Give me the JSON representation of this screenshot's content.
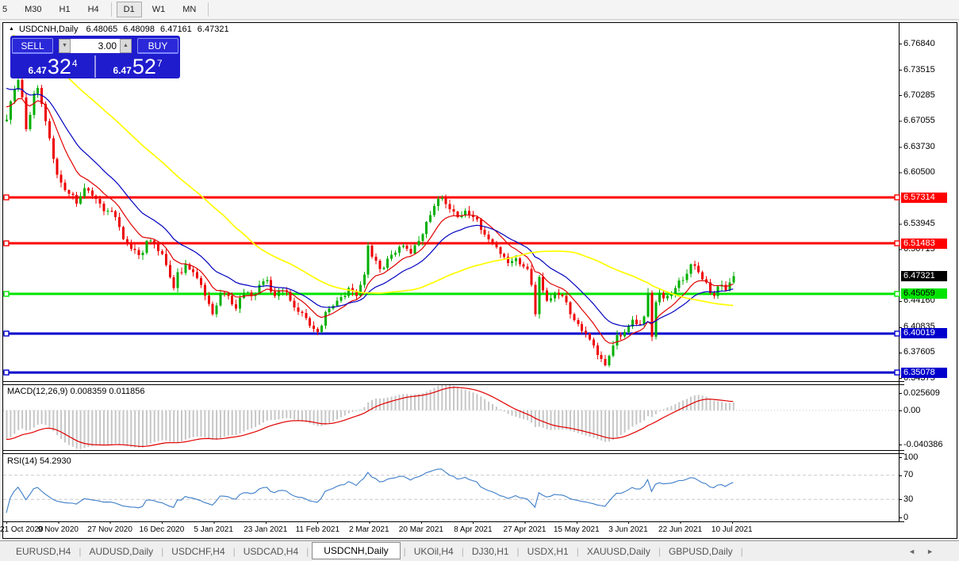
{
  "toolbar": {
    "timeframes": [
      "5",
      "M30",
      "H1",
      "H4",
      "D1",
      "W1",
      "MN"
    ],
    "active": "D1"
  },
  "chart_header": {
    "collapse_icon": "▲",
    "symbol": "USDCNH,Daily",
    "ohlc": [
      "6.48065",
      "6.48098",
      "6.47161",
      "6.47321"
    ]
  },
  "trade_panel": {
    "sell_label": "SELL",
    "buy_label": "BUY",
    "volume": "3.00",
    "spin_down": "▼",
    "spin_up": "▲",
    "sell_price": {
      "prefix": "6.47",
      "big": "32",
      "sup": "4"
    },
    "buy_price": {
      "prefix": "6.47",
      "big": "52",
      "sup": "7"
    }
  },
  "price_axis": {
    "ticks": [
      "6.76840",
      "6.73515",
      "6.70285",
      "6.67055",
      "6.63730",
      "6.60500",
      "6.53945",
      "6.50715",
      "6.44160",
      "6.40835",
      "6.37605",
      "6.34375"
    ]
  },
  "levels": [
    {
      "price": 6.57314,
      "label": "6.57314",
      "color": "#ff0000",
      "text_color": "#ffffff"
    },
    {
      "price": 6.51483,
      "label": "6.51483",
      "color": "#ff0000",
      "text_color": "#ffffff"
    },
    {
      "price": 6.45059,
      "label": "6.45059",
      "color": "#00e400",
      "text_color": "#000000"
    },
    {
      "price": 6.40019,
      "label": "6.40019",
      "color": "#0000cc",
      "text_color": "#ffffff"
    },
    {
      "price": 6.35078,
      "label": "6.35078",
      "color": "#0000cc",
      "text_color": "#ffffff"
    }
  ],
  "current_price": {
    "value": 6.47321,
    "label": "6.47321",
    "bg": "#000000",
    "text_color": "#ffffff"
  },
  "macd": {
    "label": "MACD(12,26,9) 0.008359 0.011856",
    "axis_labels": [
      "0.025609",
      "0.00",
      "-0.040386"
    ],
    "max": 0.025609,
    "min": -0.040386,
    "fast": 12,
    "slow": 26,
    "signal": 9,
    "histogram_color": "#c6c6c6",
    "signal_color": "#e00000"
  },
  "rsi": {
    "label": "RSI(14) 54.2930",
    "axis_labels": [
      "100",
      "70",
      "30",
      "0"
    ],
    "levels": [
      100,
      70,
      30,
      0
    ],
    "dashed_levels": [
      70,
      30
    ],
    "period": 14,
    "line_color": "#3d7dc8"
  },
  "date_axis": {
    "labels": [
      "21 Oct 2020",
      "9 Nov 2020",
      "27 Nov 2020",
      "16 Dec 2020",
      "5 Jan 2021",
      "23 Jan 2021",
      "11 Feb 2021",
      "2 Mar 2021",
      "20 Mar 2021",
      "8 Apr 2021",
      "27 Apr 2021",
      "15 May 2021",
      "3 Jun 2021",
      "22 Jun 2021",
      "10 Jul 2021"
    ]
  },
  "tabs": {
    "items": [
      "EURUSD,H4",
      "AUDUSD,Daily",
      "USDCHF,H4",
      "USDCAD,H4",
      "USDCNH,Daily",
      "UKOil,H4",
      "DJ30,H1",
      "USDX,H1",
      "XAUUSD,Daily",
      "GBPUSD,Daily"
    ],
    "active_index": 4,
    "scroll_left": "◄",
    "scroll_right": "►"
  },
  "chart_data": {
    "type": "candlestick",
    "symbol": "USDCNH",
    "timeframe": "Daily",
    "n_candles": 188,
    "bull_color": "#00b000",
    "bear_color": "#ee0000",
    "prehistory": {
      "start": 6.93,
      "bars": 60
    },
    "moving_averages": [
      {
        "period": 10,
        "kind": "ema",
        "color": "#e00000",
        "w": 1.2
      },
      {
        "period": 21,
        "kind": "ema",
        "color": "#0000c0",
        "w": 1.2
      },
      {
        "period": 55,
        "kind": "sma",
        "color": "#ffff00",
        "w": 1.7
      }
    ],
    "close_anchors": [
      [
        0,
        6.672
      ],
      [
        1,
        6.695
      ],
      [
        2,
        6.71
      ],
      [
        3,
        6.722
      ],
      [
        4,
        6.7
      ],
      [
        5,
        6.66
      ],
      [
        6,
        6.678
      ],
      [
        7,
        6.705
      ],
      [
        8,
        6.712
      ],
      [
        9,
        6.692
      ],
      [
        10,
        6.67
      ],
      [
        11,
        6.648
      ],
      [
        12,
        6.622
      ],
      [
        13,
        6.602
      ],
      [
        14,
        6.592
      ],
      [
        16,
        6.578
      ],
      [
        18,
        6.565
      ],
      [
        20,
        6.585
      ],
      [
        22,
        6.575
      ],
      [
        24,
        6.565
      ],
      [
        26,
        6.556
      ],
      [
        28,
        6.548
      ],
      [
        30,
        6.52
      ],
      [
        32,
        6.508
      ],
      [
        34,
        6.5
      ],
      [
        36,
        6.518
      ],
      [
        38,
        6.514
      ],
      [
        39,
        6.505
      ],
      [
        41,
        6.487
      ],
      [
        43,
        6.458
      ],
      [
        44,
        6.478
      ],
      [
        46,
        6.488
      ],
      [
        48,
        6.478
      ],
      [
        50,
        6.462
      ],
      [
        52,
        6.438
      ],
      [
        53,
        6.425
      ],
      [
        55,
        6.452
      ],
      [
        57,
        6.448
      ],
      [
        59,
        6.432
      ],
      [
        61,
        6.452
      ],
      [
        63,
        6.448
      ],
      [
        65,
        6.462
      ],
      [
        67,
        6.468
      ],
      [
        69,
        6.448
      ],
      [
        71,
        6.455
      ],
      [
        73,
        6.442
      ],
      [
        75,
        6.428
      ],
      [
        77,
        6.42
      ],
      [
        79,
        6.406
      ],
      [
        80,
        6.402
      ],
      [
        81,
        6.41
      ],
      [
        83,
        6.432
      ],
      [
        85,
        6.442
      ],
      [
        87,
        6.448
      ],
      [
        88,
        6.458
      ],
      [
        90,
        6.448
      ],
      [
        92,
        6.475
      ],
      [
        93,
        6.512
      ],
      [
        94,
        6.498
      ],
      [
        96,
        6.482
      ],
      [
        98,
        6.495
      ],
      [
        100,
        6.503
      ],
      [
        102,
        6.512
      ],
      [
        104,
        6.502
      ],
      [
        106,
        6.518
      ],
      [
        108,
        6.542
      ],
      [
        110,
        6.562
      ],
      [
        112,
        6.572
      ],
      [
        114,
        6.558
      ],
      [
        116,
        6.548
      ],
      [
        118,
        6.556
      ],
      [
        120,
        6.548
      ],
      [
        122,
        6.532
      ],
      [
        124,
        6.52
      ],
      [
        126,
        6.51
      ],
      [
        128,
        6.498
      ],
      [
        130,
        6.492
      ],
      [
        132,
        6.488
      ],
      [
        134,
        6.482
      ],
      [
        135,
        6.462
      ],
      [
        136,
        6.425
      ],
      [
        137,
        6.472
      ],
      [
        138,
        6.455
      ],
      [
        139,
        6.442
      ],
      [
        141,
        6.452
      ],
      [
        143,
        6.448
      ],
      [
        145,
        6.425
      ],
      [
        147,
        6.412
      ],
      [
        149,
        6.4
      ],
      [
        151,
        6.385
      ],
      [
        153,
        6.368
      ],
      [
        154,
        6.36
      ],
      [
        155,
        6.372
      ],
      [
        156,
        6.385
      ],
      [
        157,
        6.398
      ],
      [
        159,
        6.402
      ],
      [
        161,
        6.418
      ],
      [
        163,
        6.412
      ],
      [
        164,
        6.422
      ],
      [
        165,
        6.452
      ],
      [
        166,
        6.396
      ],
      [
        167,
        6.44
      ],
      [
        168,
        6.452
      ],
      [
        170,
        6.448
      ],
      [
        172,
        6.458
      ],
      [
        174,
        6.468
      ],
      [
        176,
        6.488
      ],
      [
        178,
        6.478
      ],
      [
        180,
        6.465
      ],
      [
        182,
        6.448
      ],
      [
        184,
        6.462
      ],
      [
        185,
        6.455
      ],
      [
        186,
        6.465
      ],
      [
        187,
        6.4732
      ]
    ]
  }
}
